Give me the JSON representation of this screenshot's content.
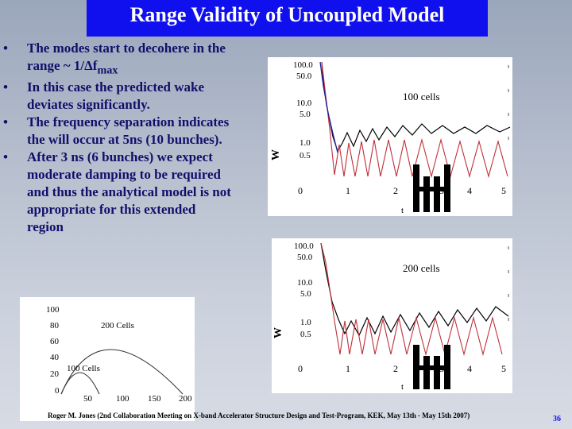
{
  "slide": {
    "title": "Range Validity of Uncoupled Model",
    "bullets": [
      "The modes start to decohere in the range ~ 1/Δf",
      "In this case the predicted wake deviates significantly.",
      "The frequency separation indicates the will occur at 5ns (10 bunches).",
      "After 3 ns (6 bunches) we expect moderate damping to be required and thus the analytical model is not appropriate for this extended region"
    ],
    "bullet1_sub": "max",
    "footer": "Roger M. Jones (2nd Collaboration Meeting on X-band Accelerator Structure Design and Test-Program, KEK, May 13th - May 15th 2007)",
    "page_number": "36"
  },
  "chart_data": [
    {
      "type": "line",
      "annotation": "100 cells",
      "xlabel": "t",
      "ylabel": "W",
      "log_y": true,
      "y_ticks": [
        "100.0",
        "50.0",
        "10.0",
        "5.0",
        "1.0",
        "0.5"
      ],
      "x_ticks": [
        "0",
        "1",
        "2",
        "3",
        "4",
        "5"
      ],
      "xlim": [
        0,
        5
      ]
    },
    {
      "type": "line",
      "annotation": "200 cells",
      "xlabel": "t",
      "ylabel": "W",
      "log_y": true,
      "y_ticks": [
        "100.0",
        "50.0",
        "10.0",
        "5.0",
        "1.0",
        "0.5"
      ],
      "x_ticks": [
        "0",
        "1",
        "2",
        "3",
        "4",
        "5"
      ],
      "xlim": [
        0,
        5
      ]
    },
    {
      "type": "line",
      "series": [
        {
          "name": "200 Cells"
        },
        {
          "name": "100 Cells"
        }
      ],
      "y_ticks": [
        "100",
        "80",
        "60",
        "40",
        "20",
        "0"
      ],
      "x_ticks": [
        "50",
        "100",
        "150",
        "200"
      ],
      "ylim": [
        0,
        100
      ],
      "xlim": [
        0,
        200
      ]
    }
  ]
}
